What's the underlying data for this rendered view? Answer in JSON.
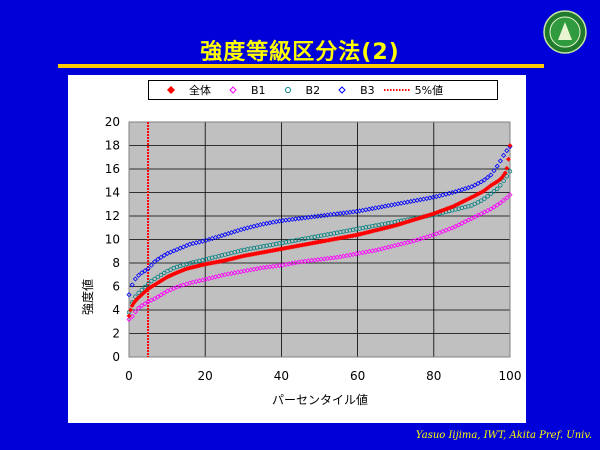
{
  "slide": {
    "title": "強度等級区分法(2)",
    "credit": "Yasuo Iijima, IWT, Akita Pref.  Univ."
  },
  "colors": {
    "background": "#0000d8",
    "title": "#ffff00",
    "rule": "#ffcc00",
    "plot_area": "#c0c0c0"
  },
  "chart_data": {
    "type": "scatter",
    "title": "",
    "xlabel": "パーセンタイル値",
    "ylabel": "強度値",
    "xlim": [
      0,
      100
    ],
    "ylim": [
      0,
      20
    ],
    "xticks": [
      0,
      20,
      40,
      60,
      80,
      100
    ],
    "yticks": [
      0,
      2,
      4,
      6,
      8,
      10,
      12,
      14,
      16,
      18,
      20
    ],
    "grid": true,
    "legend_position": "top",
    "series": [
      {
        "name": "全体",
        "color": "#ff0000",
        "marker": "filled-diamond",
        "points": [
          [
            0,
            3.5
          ],
          [
            0.5,
            4.1
          ],
          [
            1,
            4.5
          ],
          [
            2,
            4.9
          ],
          [
            3,
            5.2
          ],
          [
            4,
            5.5
          ],
          [
            5,
            5.8
          ],
          [
            6,
            6.0
          ],
          [
            8,
            6.4
          ],
          [
            10,
            6.8
          ],
          [
            12,
            7.1
          ],
          [
            15,
            7.5
          ],
          [
            20,
            7.9
          ],
          [
            25,
            8.2
          ],
          [
            30,
            8.6
          ],
          [
            35,
            8.9
          ],
          [
            40,
            9.2
          ],
          [
            45,
            9.5
          ],
          [
            50,
            9.8
          ],
          [
            55,
            10.1
          ],
          [
            60,
            10.4
          ],
          [
            65,
            10.8
          ],
          [
            70,
            11.2
          ],
          [
            75,
            11.7
          ],
          [
            80,
            12.2
          ],
          [
            85,
            12.8
          ],
          [
            90,
            13.6
          ],
          [
            93,
            14.1
          ],
          [
            95,
            14.6
          ],
          [
            97,
            15.0
          ],
          [
            98,
            15.3
          ],
          [
            99,
            15.8
          ],
          [
            99.5,
            16.6
          ],
          [
            100,
            18.0
          ]
        ]
      },
      {
        "name": "B1",
        "color": "#ff00ff",
        "marker": "hollow-diamond",
        "points": [
          [
            0,
            3.2
          ],
          [
            1,
            3.5
          ],
          [
            2,
            4.0
          ],
          [
            3,
            4.3
          ],
          [
            5,
            4.7
          ],
          [
            7,
            5.0
          ],
          [
            10,
            5.6
          ],
          [
            13,
            6.0
          ],
          [
            16,
            6.3
          ],
          [
            20,
            6.6
          ],
          [
            25,
            7.0
          ],
          [
            30,
            7.3
          ],
          [
            35,
            7.6
          ],
          [
            40,
            7.8
          ],
          [
            45,
            8.1
          ],
          [
            50,
            8.3
          ],
          [
            55,
            8.5
          ],
          [
            60,
            8.8
          ],
          [
            65,
            9.1
          ],
          [
            70,
            9.5
          ],
          [
            75,
            9.9
          ],
          [
            80,
            10.4
          ],
          [
            85,
            11.0
          ],
          [
            90,
            11.8
          ],
          [
            95,
            12.6
          ],
          [
            97,
            13.0
          ],
          [
            99,
            13.5
          ],
          [
            100,
            13.8
          ]
        ]
      },
      {
        "name": "B2",
        "color": "#008080",
        "marker": "hollow-circle",
        "points": [
          [
            0,
            3.8
          ],
          [
            1,
            4.8
          ],
          [
            2,
            5.3
          ],
          [
            3,
            5.6
          ],
          [
            4,
            5.9
          ],
          [
            5,
            6.2
          ],
          [
            6,
            6.5
          ],
          [
            8,
            6.9
          ],
          [
            10,
            7.3
          ],
          [
            12,
            7.6
          ],
          [
            15,
            7.9
          ],
          [
            20,
            8.3
          ],
          [
            25,
            8.7
          ],
          [
            30,
            9.1
          ],
          [
            35,
            9.4
          ],
          [
            40,
            9.7
          ],
          [
            45,
            10.0
          ],
          [
            50,
            10.3
          ],
          [
            55,
            10.6
          ],
          [
            60,
            10.9
          ],
          [
            65,
            11.2
          ],
          [
            70,
            11.5
          ],
          [
            75,
            11.8
          ],
          [
            80,
            12.1
          ],
          [
            85,
            12.5
          ],
          [
            90,
            12.9
          ],
          [
            93,
            13.4
          ],
          [
            95,
            13.9
          ],
          [
            97,
            14.4
          ],
          [
            99,
            15.3
          ],
          [
            100,
            15.8
          ]
        ]
      },
      {
        "name": "B3",
        "color": "#0000ff",
        "marker": "hollow-diamond",
        "points": [
          [
            0,
            5.3
          ],
          [
            1,
            6.3
          ],
          [
            2,
            6.8
          ],
          [
            3,
            7.1
          ],
          [
            5,
            7.5
          ],
          [
            7,
            8.2
          ],
          [
            10,
            8.8
          ],
          [
            13,
            9.2
          ],
          [
            16,
            9.6
          ],
          [
            20,
            9.9
          ],
          [
            25,
            10.4
          ],
          [
            30,
            10.9
          ],
          [
            35,
            11.3
          ],
          [
            40,
            11.6
          ],
          [
            45,
            11.8
          ],
          [
            50,
            12.0
          ],
          [
            55,
            12.2
          ],
          [
            60,
            12.4
          ],
          [
            65,
            12.7
          ],
          [
            70,
            13.0
          ],
          [
            75,
            13.3
          ],
          [
            80,
            13.6
          ],
          [
            85,
            14.0
          ],
          [
            90,
            14.5
          ],
          [
            93,
            15.0
          ],
          [
            95,
            15.5
          ],
          [
            97,
            16.4
          ],
          [
            98,
            17.0
          ],
          [
            99,
            17.5
          ],
          [
            100,
            17.9
          ]
        ]
      },
      {
        "name": "5%値",
        "color": "#ff0000",
        "marker": "dotted-vertical-line",
        "x": 5
      }
    ]
  }
}
